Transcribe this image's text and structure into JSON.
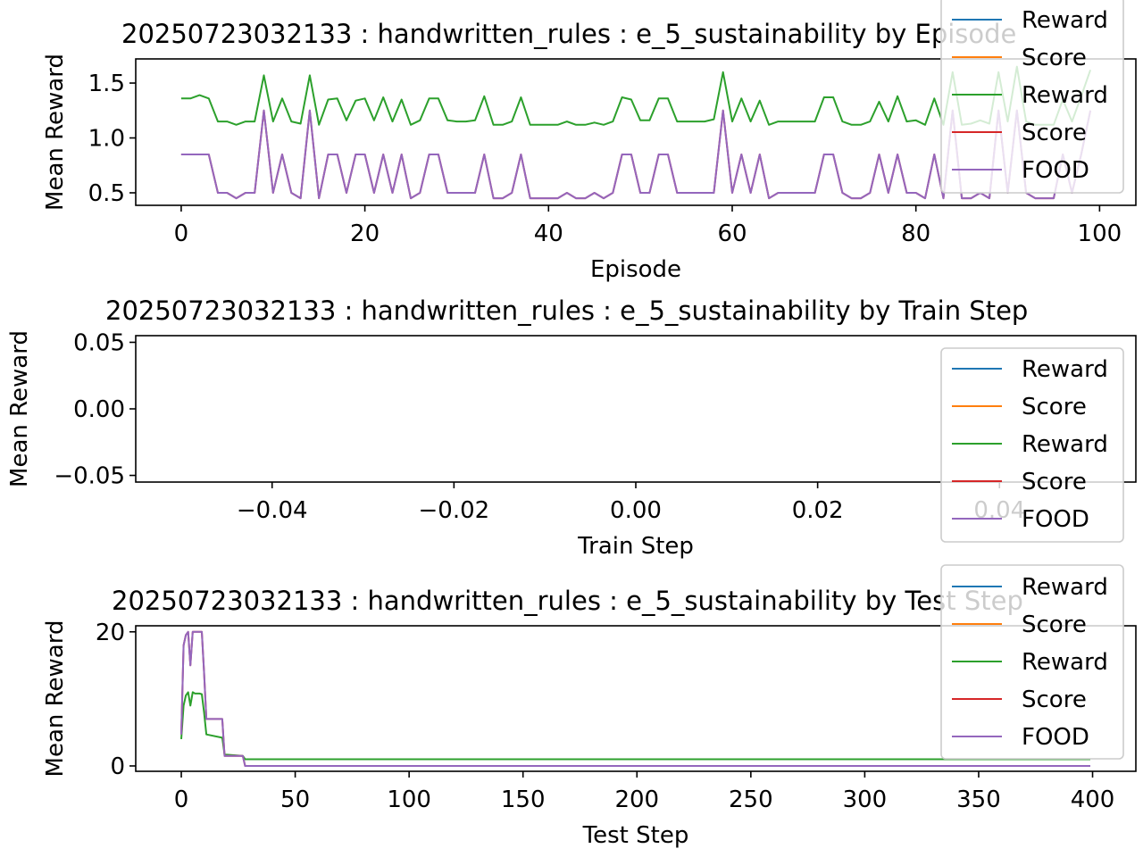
{
  "colors": {
    "Reward_1": "#1f77b4",
    "Score_1": "#ff7f0e",
    "Reward_2": "#2ca02c",
    "Score_2": "#d62728",
    "FOOD": "#9467bd"
  },
  "legend_labels": [
    "Reward",
    "Score",
    "Reward",
    "Score",
    "FOOD"
  ],
  "chart_data": [
    {
      "type": "line",
      "title": "20250723032133 : handwritten_rules : e_5_sustainability by Episode",
      "xlabel": "Episode",
      "ylabel": "Mean Reward",
      "xlim": [
        -4.95,
        103.95
      ],
      "ylim": [
        0.386,
        1.72
      ],
      "xticks": [
        0,
        20,
        40,
        60,
        80,
        100
      ],
      "xtick_labels": [
        "0",
        "20",
        "40",
        "60",
        "80",
        "100"
      ],
      "yticks": [
        0.5,
        1.0,
        1.5
      ],
      "ytick_labels": [
        "0.5",
        "1.0",
        "1.5"
      ],
      "grid": false,
      "legend_placement": "upper-right",
      "x_start": 0,
      "series": [
        {
          "name": "Reward",
          "color": "#2ca02c",
          "values": [
            1.36,
            1.36,
            1.39,
            1.36,
            1.15,
            1.15,
            1.12,
            1.15,
            1.15,
            1.57,
            1.15,
            1.36,
            1.15,
            1.13,
            1.57,
            1.12,
            1.35,
            1.36,
            1.16,
            1.34,
            1.36,
            1.16,
            1.37,
            1.15,
            1.35,
            1.12,
            1.16,
            1.36,
            1.36,
            1.16,
            1.15,
            1.15,
            1.16,
            1.38,
            1.12,
            1.12,
            1.15,
            1.37,
            1.12,
            1.12,
            1.12,
            1.12,
            1.15,
            1.12,
            1.12,
            1.14,
            1.12,
            1.15,
            1.37,
            1.35,
            1.16,
            1.16,
            1.36,
            1.36,
            1.15,
            1.15,
            1.15,
            1.15,
            1.17,
            1.6,
            1.15,
            1.36,
            1.15,
            1.34,
            1.12,
            1.15,
            1.15,
            1.15,
            1.15,
            1.15,
            1.37,
            1.37,
            1.15,
            1.12,
            1.12,
            1.15,
            1.33,
            1.15,
            1.38,
            1.15,
            1.16,
            1.12,
            1.36,
            1.12,
            1.6,
            1.12,
            1.13,
            1.16,
            1.13,
            1.6,
            1.15,
            1.65,
            1.15,
            1.12,
            1.12,
            1.12,
            1.35,
            1.15,
            1.38,
            1.62
          ]
        },
        {
          "name": "Score",
          "color": "#d62728",
          "values": [
            0.85,
            0.85,
            0.85,
            0.85,
            0.5,
            0.5,
            0.45,
            0.5,
            0.5,
            1.25,
            0.5,
            0.85,
            0.5,
            0.45,
            1.25,
            0.45,
            0.85,
            0.85,
            0.5,
            0.85,
            0.85,
            0.5,
            0.85,
            0.5,
            0.85,
            0.45,
            0.5,
            0.85,
            0.85,
            0.5,
            0.5,
            0.5,
            0.5,
            0.85,
            0.45,
            0.45,
            0.5,
            0.85,
            0.45,
            0.45,
            0.45,
            0.45,
            0.5,
            0.45,
            0.45,
            0.5,
            0.45,
            0.5,
            0.85,
            0.85,
            0.5,
            0.5,
            0.85,
            0.85,
            0.5,
            0.5,
            0.5,
            0.5,
            0.5,
            1.25,
            0.5,
            0.85,
            0.5,
            0.85,
            0.45,
            0.5,
            0.5,
            0.5,
            0.5,
            0.5,
            0.85,
            0.85,
            0.5,
            0.45,
            0.45,
            0.5,
            0.85,
            0.5,
            0.85,
            0.5,
            0.5,
            0.45,
            0.85,
            0.45,
            1.25,
            0.45,
            0.45,
            0.5,
            0.45,
            1.25,
            0.5,
            1.25,
            0.5,
            0.45,
            0.45,
            0.45,
            0.85,
            0.5,
            0.85,
            1.25
          ]
        },
        {
          "name": "FOOD",
          "color": "#9467bd",
          "values": [
            0.85,
            0.85,
            0.85,
            0.85,
            0.5,
            0.5,
            0.45,
            0.5,
            0.5,
            1.25,
            0.5,
            0.85,
            0.5,
            0.45,
            1.25,
            0.45,
            0.85,
            0.85,
            0.5,
            0.85,
            0.85,
            0.5,
            0.85,
            0.5,
            0.85,
            0.45,
            0.5,
            0.85,
            0.85,
            0.5,
            0.5,
            0.5,
            0.5,
            0.85,
            0.45,
            0.45,
            0.5,
            0.85,
            0.45,
            0.45,
            0.45,
            0.45,
            0.5,
            0.45,
            0.45,
            0.5,
            0.45,
            0.5,
            0.85,
            0.85,
            0.5,
            0.5,
            0.85,
            0.85,
            0.5,
            0.5,
            0.5,
            0.5,
            0.5,
            1.25,
            0.5,
            0.85,
            0.5,
            0.85,
            0.45,
            0.5,
            0.5,
            0.5,
            0.5,
            0.5,
            0.85,
            0.85,
            0.5,
            0.45,
            0.45,
            0.5,
            0.85,
            0.5,
            0.85,
            0.5,
            0.5,
            0.45,
            0.85,
            0.45,
            1.25,
            0.45,
            0.45,
            0.5,
            0.45,
            1.25,
            0.5,
            1.25,
            0.5,
            0.45,
            0.45,
            0.45,
            0.85,
            0.5,
            0.85,
            1.25
          ]
        }
      ]
    },
    {
      "type": "line",
      "title": "20250723032133 : handwritten_rules : e_5_sustainability by Train Step",
      "xlabel": "Train Step",
      "ylabel": "Mean Reward",
      "xlim": [
        -0.055,
        0.055
      ],
      "ylim": [
        -0.055,
        0.055
      ],
      "xticks": [
        -0.04,
        -0.02,
        0.0,
        0.02,
        0.04
      ],
      "xtick_labels": [
        "−0.04",
        "−0.02",
        "0.00",
        "0.02",
        "0.04"
      ],
      "yticks": [
        -0.05,
        0.0,
        0.05
      ],
      "ytick_labels": [
        "−0.05",
        "0.00",
        "0.05"
      ],
      "grid": false,
      "legend_placement": "right",
      "series": []
    },
    {
      "type": "line",
      "title": "20250723032133 : handwritten_rules : e_5_sustainability by Test Step",
      "xlabel": "Test Step",
      "ylabel": "Mean Reward",
      "xlim": [
        -20,
        419
      ],
      "ylim": [
        -0.8,
        20.9
      ],
      "xticks": [
        0,
        50,
        100,
        150,
        200,
        250,
        300,
        350,
        400
      ],
      "xtick_labels": [
        "0",
        "50",
        "100",
        "150",
        "200",
        "250",
        "300",
        "350",
        "400"
      ],
      "yticks": [
        0,
        20
      ],
      "ytick_labels": [
        "0",
        "20"
      ],
      "grid": false,
      "legend_placement": "upper-right",
      "series": [
        {
          "name": "Reward",
          "color": "#2ca02c",
          "x": [
            0,
            1,
            2,
            3,
            4,
            5,
            6,
            7,
            8,
            9,
            10,
            11,
            18,
            19,
            27,
            28,
            399
          ],
          "y": [
            4,
            9,
            10.5,
            11,
            9,
            11,
            10.8,
            10.8,
            10.8,
            10.7,
            8,
            4.7,
            4.2,
            1.7,
            1.5,
            1.0,
            1.0
          ]
        },
        {
          "name": "Score",
          "color": "#d62728",
          "x": [
            0,
            1,
            2,
            3,
            4,
            5,
            6,
            7,
            8,
            9,
            10,
            11,
            18,
            19,
            27,
            28,
            399
          ],
          "y": [
            4.7,
            18,
            19.5,
            20,
            15,
            20,
            20,
            20,
            20,
            20,
            14,
            7,
            7,
            1.5,
            1.5,
            0,
            0
          ]
        },
        {
          "name": "FOOD",
          "color": "#9467bd",
          "x": [
            0,
            1,
            2,
            3,
            4,
            5,
            6,
            7,
            8,
            9,
            10,
            11,
            18,
            19,
            27,
            28,
            399
          ],
          "y": [
            4.7,
            18,
            19.5,
            20,
            15,
            20,
            20,
            20,
            20,
            20,
            14,
            7,
            7,
            1.5,
            1.5,
            0,
            0
          ]
        }
      ]
    }
  ]
}
